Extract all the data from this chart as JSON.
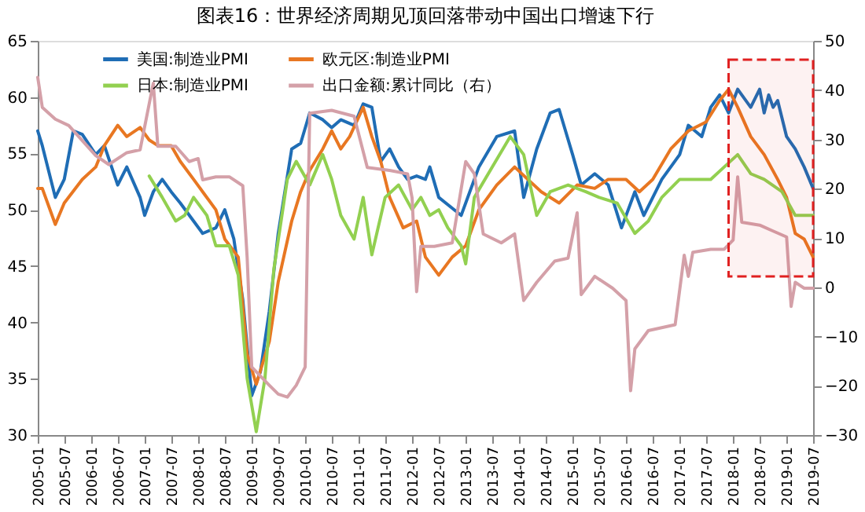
{
  "chart_data": {
    "type": "line",
    "title": "图表16：世界经济周期见顶回落带动中国出口增速下行",
    "xlim": [
      "2005-01",
      "2019-07"
    ],
    "xticks": [
      "2005-01",
      "2005-07",
      "2006-01",
      "2006-07",
      "2007-01",
      "2007-07",
      "2008-01",
      "2008-07",
      "2009-01",
      "2009-07",
      "2010-01",
      "2010-07",
      "2011-01",
      "2011-07",
      "2012-01",
      "2012-07",
      "2013-01",
      "2013-07",
      "2014-01",
      "2014-07",
      "2015-01",
      "2015-07",
      "2016-01",
      "2016-07",
      "2017-01",
      "2017-07",
      "2018-01",
      "2018-07",
      "2019-01",
      "2019-07"
    ],
    "ylim": [
      30,
      65
    ],
    "yticks": [
      30,
      35,
      40,
      45,
      50,
      55,
      60,
      65
    ],
    "y2lim": [
      -30,
      50
    ],
    "y2ticks": [
      -30,
      -20,
      -10,
      0,
      10,
      20,
      30,
      40,
      50
    ],
    "grid": false,
    "legend": "top",
    "line_style": "solid",
    "bands": [
      {
        "axis": "x",
        "from": "2017-12",
        "to": "2019-07",
        "color": "#e02020"
      }
    ],
    "series": [
      {
        "name": "美国:制造业PMI",
        "color": "#1f6db5",
        "x": [
          "2005-01",
          "2005-02",
          "2005-05",
          "2005-07",
          "2005-09",
          "2005-11",
          "2006-02",
          "2006-04",
          "2006-07",
          "2006-09",
          "2006-12",
          "2007-01",
          "2007-03",
          "2007-05",
          "2007-07",
          "2007-09",
          "2007-12",
          "2008-02",
          "2008-05",
          "2008-07",
          "2008-09",
          "2008-11",
          "2009-01",
          "2009-03",
          "2009-05",
          "2009-07",
          "2009-10",
          "2009-12",
          "2010-02",
          "2010-05",
          "2010-07",
          "2010-09",
          "2010-12",
          "2011-02",
          "2011-04",
          "2011-06",
          "2011-08",
          "2011-10",
          "2011-12",
          "2012-02",
          "2012-04",
          "2012-05",
          "2012-07",
          "2012-12",
          "2013-04",
          "2013-08",
          "2013-12",
          "2014-02",
          "2014-05",
          "2014-08",
          "2014-10",
          "2015-01",
          "2015-03",
          "2015-06",
          "2015-09",
          "2015-12",
          "2016-03",
          "2016-05",
          "2016-09",
          "2017-01",
          "2017-03",
          "2017-06",
          "2017-08",
          "2017-10",
          "2017-12",
          "2018-02",
          "2018-05",
          "2018-07",
          "2018-08",
          "2018-09",
          "2018-10",
          "2018-11",
          "2019-01",
          "2019-03",
          "2019-05",
          "2019-07"
        ],
        "values": [
          57,
          55.7,
          51.1,
          52.7,
          57,
          56.7,
          54.9,
          55.7,
          52.2,
          53.8,
          51.1,
          49.5,
          51.6,
          52.7,
          51.6,
          50.6,
          49,
          47.9,
          48.4,
          50,
          47.4,
          42,
          33.5,
          35.6,
          41,
          47.9,
          55.4,
          55.9,
          58.6,
          58,
          57.3,
          58,
          57.5,
          59.4,
          59.1,
          54.3,
          55.4,
          53.8,
          52.7,
          53,
          52.7,
          53.8,
          51.1,
          49.5,
          53.8,
          56.5,
          57,
          51.1,
          55.4,
          58.6,
          58.9,
          54.9,
          52.2,
          53.2,
          52.2,
          48.4,
          51.6,
          49.5,
          52.7,
          54.9,
          57.5,
          56.5,
          59.1,
          60.2,
          58.6,
          60.7,
          59.1,
          60.7,
          58.6,
          60.2,
          59.1,
          59.7,
          56.5,
          55.4,
          53.8,
          51.9
        ]
      },
      {
        "name": "欧元区:制造业PMI",
        "color": "#e87722",
        "x": [
          "2005-01",
          "2005-02",
          "2005-05",
          "2005-07",
          "2005-11",
          "2006-02",
          "2006-04",
          "2006-07",
          "2006-09",
          "2006-12",
          "2007-02",
          "2007-04",
          "2007-07",
          "2007-09",
          "2007-12",
          "2008-02",
          "2008-05",
          "2008-07",
          "2008-10",
          "2008-12",
          "2009-02",
          "2009-05",
          "2009-07",
          "2009-10",
          "2009-12",
          "2010-02",
          "2010-05",
          "2010-07",
          "2010-09",
          "2010-11",
          "2011-02",
          "2011-04",
          "2011-06",
          "2011-08",
          "2011-11",
          "2012-02",
          "2012-04",
          "2012-07",
          "2012-10",
          "2013-01",
          "2013-04",
          "2013-08",
          "2013-12",
          "2014-03",
          "2014-06",
          "2014-10",
          "2015-02",
          "2015-06",
          "2015-09",
          "2016-01",
          "2016-04",
          "2016-07",
          "2016-11",
          "2017-03",
          "2017-07",
          "2017-10",
          "2017-12",
          "2018-02",
          "2018-05",
          "2018-08",
          "2018-11",
          "2019-01",
          "2019-03",
          "2019-05",
          "2019-07"
        ],
        "values": [
          51.9,
          51.9,
          48.7,
          50.6,
          52.7,
          53.8,
          55.7,
          57.5,
          56.5,
          57.3,
          56.2,
          55.7,
          55.7,
          54.3,
          52.7,
          51.6,
          50,
          47.4,
          45.8,
          37.2,
          34.5,
          38.3,
          43.6,
          49,
          51.6,
          53.5,
          55.4,
          57,
          55.4,
          56.5,
          59.1,
          56.5,
          54.3,
          51.1,
          48.4,
          49,
          45.8,
          44.2,
          45.8,
          46.8,
          50,
          52.2,
          53.8,
          52.7,
          51.6,
          50.6,
          52.2,
          51.9,
          52.7,
          52.7,
          51.6,
          52.7,
          55.4,
          57,
          57.8,
          59.7,
          60.7,
          59.1,
          56.5,
          54.9,
          52.7,
          51.1,
          47.9,
          47.4,
          45.8
        ]
      },
      {
        "name": "日本:制造业PMI",
        "color": "#92d050",
        "x": [
          "2007-02",
          "2007-05",
          "2007-08",
          "2007-10",
          "2007-12",
          "2008-03",
          "2008-05",
          "2008-08",
          "2008-10",
          "2008-12",
          "2009-02",
          "2009-04",
          "2009-06",
          "2009-09",
          "2009-11",
          "2010-02",
          "2010-05",
          "2010-07",
          "2010-09",
          "2010-12",
          "2011-02",
          "2011-04",
          "2011-07",
          "2011-10",
          "2012-01",
          "2012-03",
          "2012-05",
          "2012-07",
          "2012-09",
          "2012-12",
          "2013-01",
          "2013-03",
          "2013-07",
          "2013-11",
          "2014-02",
          "2014-05",
          "2014-08",
          "2014-12",
          "2015-04",
          "2015-07",
          "2015-11",
          "2016-03",
          "2016-06",
          "2016-09",
          "2017-01",
          "2017-04",
          "2017-08",
          "2017-11",
          "2018-02",
          "2018-05",
          "2018-08",
          "2018-12",
          "2019-03",
          "2019-07"
        ],
        "values": [
          53,
          51.1,
          49,
          49.5,
          51.1,
          49.5,
          46.8,
          46.8,
          44.2,
          35,
          30.3,
          35,
          44.7,
          52.7,
          54.3,
          52.2,
          54.9,
          52.7,
          49.5,
          47.4,
          51.1,
          46,
          51.1,
          52.2,
          50,
          51.1,
          49.5,
          50,
          48.4,
          46.8,
          45.2,
          51.1,
          53.8,
          56.5,
          54.9,
          49.5,
          51.6,
          52.2,
          51.6,
          51.1,
          50.6,
          47.9,
          49,
          51.1,
          52.7,
          52.7,
          52.7,
          53.8,
          54.9,
          53.2,
          52.7,
          51.6,
          49.5,
          49.5
        ]
      },
      {
        "name": "出口金额:累计同比（右）",
        "color": "#d4a0a8",
        "axis": "y2",
        "x": [
          "2005-01",
          "2005-02",
          "2005-05",
          "2005-08",
          "2006-02",
          "2006-05",
          "2006-09",
          "2006-12",
          "2007-03",
          "2007-04",
          "2007-08",
          "2007-11",
          "2008-01",
          "2008-02",
          "2008-05",
          "2008-08",
          "2008-11",
          "2008-12",
          "2009-01",
          "2009-05",
          "2009-07",
          "2009-09",
          "2009-11",
          "2010-01",
          "2010-02",
          "2010-07",
          "2010-12",
          "2011-03",
          "2011-08",
          "2011-12",
          "2012-01",
          "2012-02",
          "2012-03",
          "2012-06",
          "2012-10",
          "2013-01",
          "2013-03",
          "2013-05",
          "2013-09",
          "2013-12",
          "2014-02",
          "2014-05",
          "2014-09",
          "2014-12",
          "2015-02",
          "2015-03",
          "2015-06",
          "2015-10",
          "2016-01",
          "2016-02",
          "2016-03",
          "2016-06",
          "2016-12",
          "2017-02",
          "2017-03",
          "2017-04",
          "2017-08",
          "2017-11",
          "2018-01",
          "2018-02",
          "2018-03",
          "2018-07",
          "2018-10",
          "2019-01",
          "2019-02",
          "2019-03",
          "2019-05",
          "2019-07"
        ],
        "values": [
          42.6,
          36.5,
          34.1,
          32.8,
          26.7,
          24.9,
          27.3,
          27.9,
          41.4,
          28.6,
          28.6,
          25.5,
          26.1,
          21.8,
          22.4,
          22.4,
          20.6,
          5.9,
          -16.2,
          -19.9,
          -21.7,
          -22.3,
          -19.9,
          -16.2,
          35.3,
          35.9,
          34.7,
          24.3,
          23.7,
          23,
          18.1,
          -0.9,
          8.3,
          8.3,
          9,
          25.5,
          23,
          10.8,
          9,
          10.8,
          -2.7,
          1,
          5.3,
          5.9,
          15.1,
          -1.5,
          2.2,
          -0.2,
          -2.7,
          -21,
          -12.5,
          -8.8,
          -7.6,
          6.5,
          2.2,
          7.1,
          7.7,
          7.7,
          9.6,
          22.4,
          13.2,
          12.6,
          11.4,
          10.2,
          -3.9,
          1,
          -0.2,
          -0.2
        ]
      }
    ]
  }
}
